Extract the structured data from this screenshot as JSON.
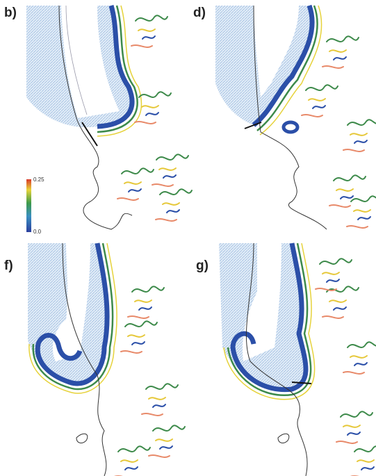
{
  "panels": [
    {
      "label": "b)"
    },
    {
      "label": "d)"
    },
    {
      "label": "f)"
    },
    {
      "label": "g)"
    }
  ],
  "colorbar": {
    "max_label": "0.25",
    "min_label": "0.0"
  }
}
